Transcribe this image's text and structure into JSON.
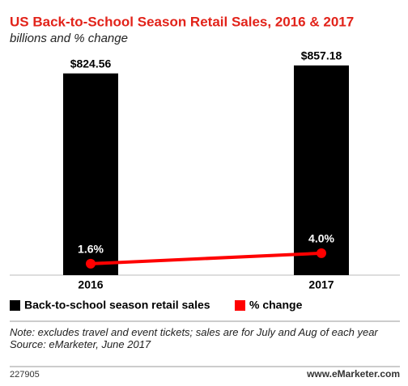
{
  "chart_data": {
    "type": "bar+line",
    "title": "US Back-to-School Season Retail Sales, 2016 & 2017",
    "subtitle": "billions and % change",
    "categories": [
      "2016",
      "2017"
    ],
    "series": [
      {
        "name": "Back-to-school season retail sales",
        "color": "#000000",
        "type": "bar",
        "values": [
          824.56,
          857.18
        ],
        "value_labels": [
          "$824.56",
          "$857.18"
        ]
      },
      {
        "name": "% change",
        "color": "#ff0000",
        "type": "line",
        "axis": "y2",
        "values": [
          1.6,
          4.0
        ],
        "value_labels": [
          "1.6%",
          "4.0%"
        ]
      }
    ],
    "ylim": [
      0,
      860
    ],
    "y2lim": [
      -1,
      47
    ],
    "note": "Note: excludes travel and event tickets; sales are for July and Aug of each year",
    "source": "Source: eMarketer, June 2017",
    "chart_id": "227905",
    "site": "www.eMarketer.com"
  }
}
